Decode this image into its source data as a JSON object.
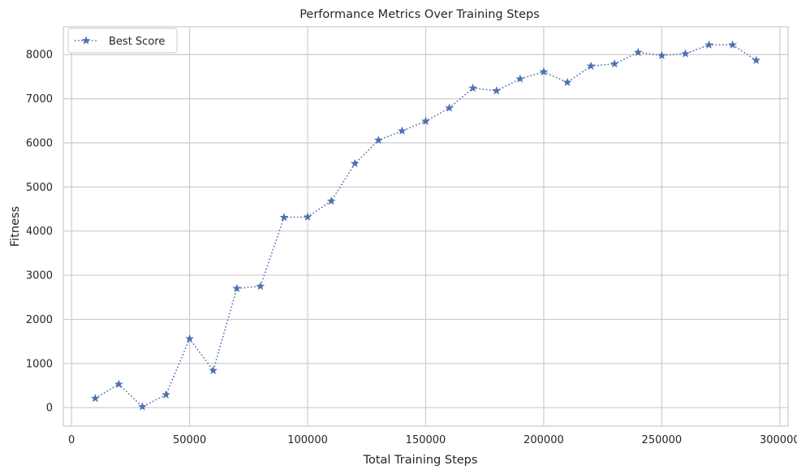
{
  "chart_data": {
    "type": "line",
    "title": "Performance Metrics Over Training Steps",
    "xlabel": "Total Training Steps",
    "ylabel": "Fitness",
    "xlim": [
      -3500,
      303500
    ],
    "ylim": [
      -420,
      8630
    ],
    "xticks": [
      0,
      50000,
      100000,
      150000,
      200000,
      250000,
      300000
    ],
    "xtick_labels": [
      "0",
      "50000",
      "100000",
      "150000",
      "200000",
      "250000",
      "300000"
    ],
    "yticks": [
      0,
      1000,
      2000,
      3000,
      4000,
      5000,
      6000,
      7000,
      8000
    ],
    "ytick_labels": [
      "0",
      "1000",
      "2000",
      "3000",
      "4000",
      "5000",
      "6000",
      "7000",
      "8000"
    ],
    "grid": true,
    "legend_position": "top-left",
    "series": [
      {
        "name": "Best Score",
        "color": "#4c72b0",
        "line_style": "dotted",
        "marker": "star",
        "x": [
          10000,
          20000,
          30000,
          40000,
          50000,
          60000,
          70000,
          80000,
          90000,
          100000,
          110000,
          120000,
          130000,
          140000,
          150000,
          160000,
          170000,
          180000,
          190000,
          200000,
          210000,
          220000,
          230000,
          240000,
          250000,
          260000,
          270000,
          280000,
          290000
        ],
        "y": [
          210,
          530,
          20,
          290,
          1560,
          840,
          2700,
          2750,
          4310,
          4320,
          4680,
          5530,
          6060,
          6270,
          6490,
          6790,
          7240,
          7180,
          7450,
          7610,
          7370,
          7740,
          7790,
          8050,
          7980,
          8020,
          8220,
          8220,
          7870
        ]
      }
    ]
  }
}
